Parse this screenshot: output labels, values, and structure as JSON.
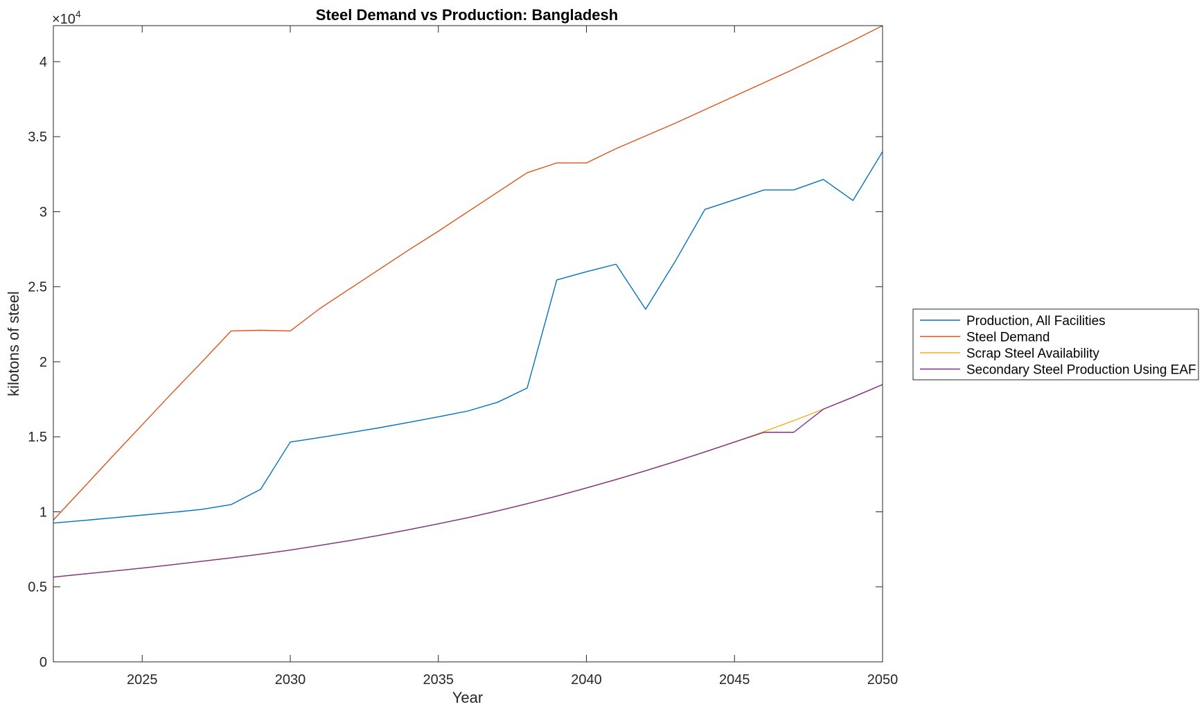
{
  "chart_data": {
    "type": "line",
    "title": "Steel Demand vs Production: Bangladesh",
    "xlabel": "Year",
    "ylabel": "kilotons of steel",
    "y_exponent_label": "×10",
    "y_exponent_power": "4",
    "xlim": [
      2022,
      2050
    ],
    "ylim": [
      0,
      42400
    ],
    "x_ticks": [
      2025,
      2030,
      2035,
      2040,
      2045,
      2050
    ],
    "x_tick_labels": [
      "2025",
      "2030",
      "2035",
      "2040",
      "2045",
      "2050"
    ],
    "y_ticks": [
      0,
      5000,
      10000,
      15000,
      20000,
      25000,
      30000,
      35000,
      40000
    ],
    "y_tick_labels": [
      "0",
      "0.5",
      "1",
      "1.5",
      "2",
      "2.5",
      "3",
      "3.5",
      "4"
    ],
    "grid": false,
    "legend_position": "outside-right",
    "x": [
      2022,
      2023,
      2024,
      2025,
      2026,
      2027,
      2028,
      2029,
      2030,
      2031,
      2032,
      2033,
      2034,
      2035,
      2036,
      2037,
      2038,
      2039,
      2040,
      2041,
      2042,
      2043,
      2044,
      2045,
      2046,
      2047,
      2048,
      2049,
      2050
    ],
    "series": [
      {
        "name": "Production, All Facilities",
        "color": "#0072BD",
        "values": [
          9250,
          9420,
          9600,
          9780,
          9960,
          10160,
          10480,
          11500,
          14650,
          14950,
          15270,
          15600,
          15960,
          16330,
          16720,
          17300,
          18250,
          25450,
          26000,
          26500,
          23500,
          26700,
          30150,
          30800,
          31450,
          31450,
          32150,
          30750,
          34000
        ]
      },
      {
        "name": "Steel Demand",
        "color": "#D95319",
        "values": [
          9450,
          11570,
          13700,
          15800,
          17900,
          19950,
          22050,
          22100,
          22050,
          23550,
          24850,
          26150,
          27450,
          28700,
          30000,
          31300,
          32600,
          33250,
          33250,
          34200,
          35050,
          35900,
          36800,
          37700,
          38600,
          39500,
          40450,
          41400,
          42400
        ]
      },
      {
        "name": "Scrap Steel Availability",
        "color": "#EDB120",
        "values": [
          5650,
          5850,
          6050,
          6250,
          6470,
          6700,
          6930,
          7180,
          7450,
          7760,
          8080,
          8430,
          8810,
          9200,
          9610,
          10060,
          10540,
          11050,
          11590,
          12150,
          12740,
          13350,
          13990,
          14650,
          15350,
          16080,
          16840,
          17640,
          18480
        ]
      },
      {
        "name": "Secondary Steel Production Using EAF",
        "color": "#7E2F8E",
        "values": [
          5650,
          5850,
          6050,
          6250,
          6470,
          6700,
          6930,
          7180,
          7450,
          7760,
          8080,
          8430,
          8810,
          9200,
          9610,
          10060,
          10540,
          11050,
          11590,
          12150,
          12740,
          13350,
          13990,
          14650,
          15300,
          15300,
          16840,
          17640,
          18480
        ]
      }
    ]
  }
}
